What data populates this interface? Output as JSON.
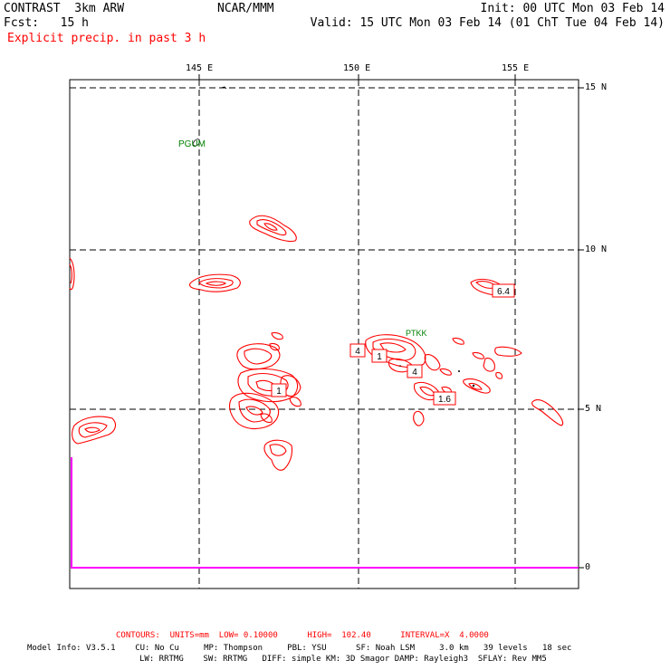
{
  "header": {
    "left1": "CONTRAST  3km ARW",
    "left2": "Fcst:   15 h",
    "center": "NCAR/MMM",
    "init": "Init: 00 UTC Mon 03 Feb 14",
    "valid": "Valid: 15 UTC Mon 03 Feb 14 (01 ChT Tue 04 Feb 14)",
    "field": "Explicit precip. in past 3 h"
  },
  "axes": {
    "lon_labels": [
      "145 E",
      "150 E",
      "155 E"
    ],
    "lat_labels": [
      "15 N",
      "10 N",
      "5 N",
      "0"
    ]
  },
  "stations": [
    "PGUM",
    "PTKK"
  ],
  "contour_labels": [
    "6.4",
    "4",
    "1",
    "4",
    "1.6",
    "1"
  ],
  "footer": {
    "contours": "CONTOURS:  UNITS=mm  LOW= 0.10000      HIGH=  102.40      INTERVAL=X  4.0000",
    "model1": "Model Info: V3.5.1    CU: No Cu     MP: Thompson     PBL: YSU      SF: Noah LSM     3.0 km   39 levels   18 sec",
    "model2": "LW: RRTMG    SW: RRTMG   DIFF: simple KM: 3D Smagor DAMP: Rayleigh3  SFLAY: Rev MM5"
  },
  "colors": {
    "contour": "#ff0000",
    "station": "#008000",
    "boundary": "#ff00ff"
  }
}
